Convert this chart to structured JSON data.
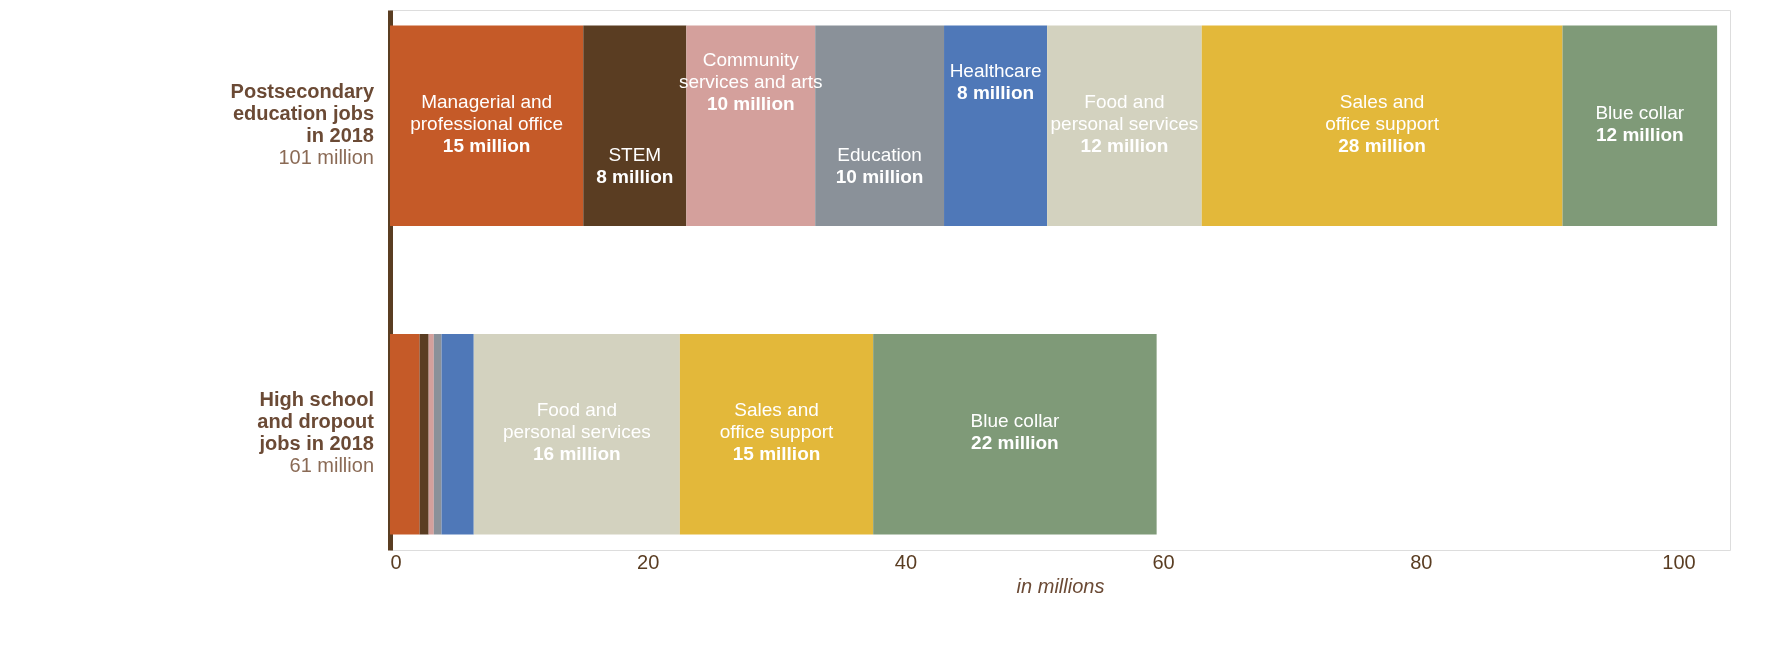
{
  "chart_data": {
    "type": "bar",
    "orientation": "horizontal",
    "stacked": true,
    "categories": [
      "Postsecondary education jobs in 2018",
      "High school and dropout jobs in 2018"
    ],
    "totals": [
      "101 million",
      "61 million"
    ],
    "xlabel": "in millions",
    "xlim": [
      0,
      104
    ],
    "xticks": [
      0,
      20,
      40,
      60,
      80,
      100
    ],
    "grid": false,
    "legend": false,
    "series": [
      {
        "name": "Managerial and professional office",
        "color": "#c55a28",
        "values": [
          15,
          2.3
        ],
        "value_labels": [
          "15 million",
          null
        ]
      },
      {
        "name": "STEM",
        "color": "#5a3d22",
        "values": [
          8,
          0.7
        ],
        "value_labels": [
          "8 million",
          null
        ]
      },
      {
        "name": "Community services and arts",
        "color": "#d4a09c",
        "values": [
          10,
          0.4
        ],
        "value_labels": [
          "10 million",
          null
        ]
      },
      {
        "name": "Education",
        "color": "#8a9199",
        "values": [
          10,
          0.6
        ],
        "value_labels": [
          "10 million",
          null
        ]
      },
      {
        "name": "Healthcare",
        "color": "#4f78b8",
        "values": [
          8,
          2.5
        ],
        "value_labels": [
          "8 million",
          null
        ]
      },
      {
        "name": "Food and personal services",
        "color": "#d3d2bf",
        "values": [
          12,
          16
        ],
        "value_labels": [
          "12 million",
          "16 million"
        ]
      },
      {
        "name": "Sales and office support",
        "color": "#e3b83a",
        "values": [
          28,
          15
        ],
        "value_labels": [
          "28 million",
          "15 million"
        ]
      },
      {
        "name": "Blue collar",
        "color": "#7f9a78",
        "values": [
          12,
          22
        ],
        "value_labels": [
          "12 million",
          "22 million"
        ]
      }
    ]
  }
}
